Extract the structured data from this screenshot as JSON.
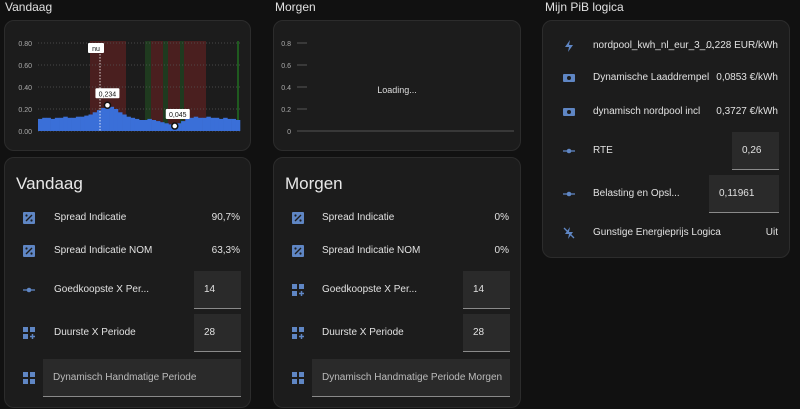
{
  "chart_data": [
    {
      "type": "bar",
      "color": "#3a6fd8",
      "ylim": [
        0,
        0.85
      ],
      "yticks": [
        {
          "value": 0,
          "label": "0.00"
        },
        {
          "value": 0.2,
          "label": "0.20"
        },
        {
          "value": 0.4,
          "label": "0.40"
        },
        {
          "value": 0.6,
          "label": "0.60"
        },
        {
          "value": 0.8,
          "label": "0.80"
        }
      ],
      "grid": true,
      "now_label": "nu",
      "values": [
        0.11,
        0.12,
        0.12,
        0.11,
        0.12,
        0.12,
        0.13,
        0.12,
        0.12,
        0.13,
        0.13,
        0.14,
        0.15,
        0.17,
        0.19,
        0.21,
        0.234,
        0.22,
        0.2,
        0.17,
        0.15,
        0.13,
        0.12,
        0.11,
        0.1,
        0.1,
        0.11,
        0.1,
        0.09,
        0.08,
        0.07,
        0.06,
        0.045,
        0.07,
        0.09,
        0.11,
        0.12,
        0.13,
        0.12,
        0.12,
        0.13,
        0.12,
        0.12,
        0.11,
        0.12,
        0.11,
        0.11,
        0.1
      ],
      "markers": [
        {
          "value": 0.234,
          "label": "0,234"
        },
        {
          "value": 0.045,
          "label": "0,045"
        }
      ]
    },
    {
      "type": "line",
      "ylim": [
        0,
        0.85
      ],
      "yticks": [
        0,
        0.2,
        0.4,
        0.6,
        0.8
      ],
      "loading_text": "Loading..."
    }
  ],
  "vandaag": {
    "heading": "Vandaag",
    "title": "Vandaag",
    "rows": [
      {
        "label": "Spread Indicatie",
        "value": "90,7%"
      },
      {
        "label": "Spread Indicatie NOM",
        "value": "63,3%"
      },
      {
        "label": "Goedkoopste X Per...",
        "input": "14"
      },
      {
        "label": "Duurste X Periode",
        "input": "28"
      },
      {
        "select": "Dynamisch Handmatige Periode"
      }
    ]
  },
  "morgen": {
    "heading": "Morgen",
    "title": "Morgen",
    "rows": [
      {
        "label": "Spread Indicatie",
        "value": "0%"
      },
      {
        "label": "Spread Indicatie NOM",
        "value": "0%"
      },
      {
        "label": "Goedkoopste X Per...",
        "input": "14"
      },
      {
        "label": "Duurste X Periode",
        "input": "28"
      },
      {
        "select": "Dynamisch Handmatige Periode Morgen"
      }
    ]
  },
  "pib": {
    "heading": "Mijn PiB logica",
    "rows": [
      {
        "label": "nordpool_kwh_nl_eur_3_...",
        "value": "0,228 EUR/kWh"
      },
      {
        "label": "Dynamische Laaddrempel",
        "value": "0,0853 €/kWh"
      },
      {
        "label": "dynamisch nordpool incl",
        "value": "0,3727 €/kWh"
      },
      {
        "label": "RTE",
        "input": "0,26"
      },
      {
        "label": "Belasting en Opsl...",
        "input": "0,11961"
      },
      {
        "label": "Gunstige Energieprijs Logica",
        "value": "Uit"
      }
    ]
  }
}
